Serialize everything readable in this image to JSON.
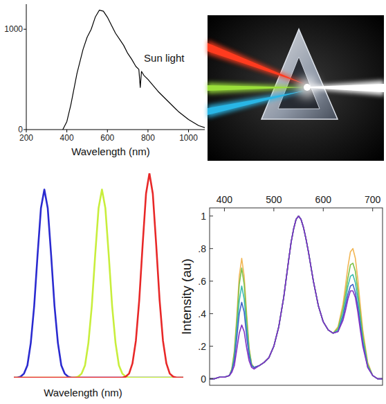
{
  "chart_data": [
    {
      "type": "line",
      "x": [
        380,
        400,
        420,
        450,
        480,
        500,
        520,
        540,
        560,
        580,
        600,
        620,
        640,
        660,
        680,
        700,
        720,
        740,
        755,
        762,
        768,
        780,
        800,
        850,
        900,
        950,
        1000,
        1050,
        1080
      ],
      "values": [
        0,
        80,
        250,
        560,
        800,
        920,
        1000,
        1120,
        1190,
        1180,
        1120,
        1040,
        960,
        900,
        840,
        760,
        700,
        630,
        600,
        420,
        580,
        540,
        500,
        380,
        280,
        180,
        100,
        40,
        20
      ],
      "color": "#000000",
      "xlim": [
        200,
        1080
      ],
      "ylim": [
        0,
        1250
      ],
      "xticks": [
        200,
        400,
        600,
        800,
        1000
      ],
      "yticks": [
        0,
        1000
      ],
      "x_label": "Wavelength (nm)",
      "annotations": [
        {
          "text": "Sun light",
          "x": 780,
          "y": 680
        }
      ],
      "grid": false
    },
    {
      "type": "line",
      "x": [
        0,
        2,
        4,
        6,
        8,
        10,
        12,
        14,
        16,
        18,
        20,
        22,
        24,
        26,
        28,
        30,
        32,
        34,
        36,
        38,
        40,
        42,
        44,
        46,
        48,
        50,
        52,
        54,
        56,
        58,
        60,
        62,
        64,
        66,
        68,
        70,
        72,
        74,
        76,
        78,
        80,
        82,
        84,
        86,
        88,
        90,
        92,
        94,
        96,
        98,
        100
      ],
      "series": [
        {
          "color": "#2a2ad0",
          "values": [
            0,
            0,
            0.005,
            0.02,
            0.06,
            0.17,
            0.35,
            0.6,
            0.83,
            0.92,
            0.83,
            0.6,
            0.35,
            0.17,
            0.06,
            0.02,
            0.005,
            0,
            0,
            0,
            0,
            0,
            0,
            0,
            0,
            0,
            0,
            0,
            0,
            0,
            0,
            0,
            0,
            0,
            0,
            0,
            0,
            0,
            0,
            0,
            0,
            0,
            0,
            0,
            0,
            0,
            0,
            0,
            0,
            0,
            0
          ]
        },
        {
          "color": "#c8ee3c",
          "values": [
            0,
            0,
            0,
            0,
            0,
            0,
            0,
            0,
            0,
            0,
            0,
            0,
            0,
            0,
            0,
            0,
            0,
            0,
            0,
            0.005,
            0.02,
            0.06,
            0.17,
            0.35,
            0.6,
            0.83,
            0.92,
            0.83,
            0.6,
            0.35,
            0.17,
            0.06,
            0.02,
            0.005,
            0,
            0,
            0,
            0,
            0,
            0,
            0,
            0,
            0,
            0,
            0,
            0,
            0,
            0,
            0,
            0,
            0
          ]
        },
        {
          "color": "#e82828",
          "values": [
            0,
            0,
            0,
            0,
            0,
            0,
            0,
            0,
            0,
            0,
            0,
            0,
            0,
            0,
            0,
            0,
            0,
            0,
            0,
            0,
            0,
            0,
            0,
            0,
            0,
            0,
            0,
            0,
            0,
            0,
            0,
            0,
            0,
            0.005,
            0.02,
            0.07,
            0.18,
            0.38,
            0.65,
            0.9,
            1,
            0.9,
            0.65,
            0.38,
            0.18,
            0.07,
            0.02,
            0.005,
            0,
            0,
            0
          ]
        }
      ],
      "xlim": [
        0,
        100
      ],
      "ylim": [
        0,
        1
      ],
      "x_label": "Wavelength (nm)",
      "tick_labels": false,
      "grid": false
    },
    {
      "type": "line",
      "x": [
        370,
        380,
        390,
        400,
        410,
        415,
        420,
        425,
        430,
        435,
        440,
        445,
        450,
        455,
        460,
        470,
        480,
        490,
        500,
        510,
        520,
        530,
        535,
        540,
        545,
        550,
        555,
        560,
        565,
        570,
        580,
        590,
        600,
        610,
        620,
        630,
        640,
        645,
        650,
        655,
        660,
        665,
        670,
        675,
        680,
        690,
        700,
        710,
        720
      ],
      "series": [
        {
          "color": "#f2b654",
          "values": [
            0,
            0,
            0.01,
            0.01,
            0.02,
            0.06,
            0.17,
            0.38,
            0.63,
            0.74,
            0.63,
            0.4,
            0.19,
            0.09,
            0.07,
            0.08,
            0.1,
            0.13,
            0.2,
            0.32,
            0.5,
            0.73,
            0.84,
            0.92,
            0.98,
            1,
            0.98,
            0.93,
            0.86,
            0.78,
            0.6,
            0.45,
            0.35,
            0.3,
            0.28,
            0.32,
            0.46,
            0.57,
            0.69,
            0.78,
            0.8,
            0.74,
            0.61,
            0.45,
            0.3,
            0.1,
            0.02,
            0,
            0
          ]
        },
        {
          "color": "#7cc24a",
          "values": [
            0,
            0,
            0.01,
            0.01,
            0.02,
            0.06,
            0.16,
            0.35,
            0.58,
            0.68,
            0.58,
            0.37,
            0.18,
            0.09,
            0.07,
            0.08,
            0.1,
            0.13,
            0.2,
            0.32,
            0.5,
            0.73,
            0.84,
            0.92,
            0.98,
            1,
            0.98,
            0.93,
            0.86,
            0.78,
            0.6,
            0.45,
            0.35,
            0.3,
            0.28,
            0.31,
            0.43,
            0.52,
            0.62,
            0.7,
            0.71,
            0.66,
            0.54,
            0.4,
            0.27,
            0.09,
            0.02,
            0,
            0
          ]
        },
        {
          "color": "#3cbab0",
          "values": [
            0,
            0,
            0.01,
            0.01,
            0.02,
            0.05,
            0.13,
            0.3,
            0.48,
            0.57,
            0.49,
            0.31,
            0.16,
            0.08,
            0.07,
            0.08,
            0.1,
            0.13,
            0.2,
            0.32,
            0.5,
            0.73,
            0.84,
            0.92,
            0.98,
            1,
            0.98,
            0.93,
            0.86,
            0.78,
            0.6,
            0.45,
            0.35,
            0.3,
            0.28,
            0.3,
            0.4,
            0.48,
            0.57,
            0.63,
            0.64,
            0.59,
            0.49,
            0.36,
            0.24,
            0.08,
            0.02,
            0,
            0
          ]
        },
        {
          "color": "#4262c8",
          "values": [
            0,
            0,
            0.01,
            0.01,
            0.02,
            0.05,
            0.11,
            0.25,
            0.4,
            0.47,
            0.41,
            0.26,
            0.14,
            0.08,
            0.07,
            0.08,
            0.1,
            0.13,
            0.2,
            0.32,
            0.5,
            0.73,
            0.84,
            0.92,
            0.98,
            1,
            0.98,
            0.93,
            0.86,
            0.78,
            0.6,
            0.45,
            0.35,
            0.3,
            0.28,
            0.29,
            0.38,
            0.45,
            0.52,
            0.57,
            0.58,
            0.53,
            0.44,
            0.33,
            0.22,
            0.07,
            0.02,
            0,
            0
          ]
        },
        {
          "color": "#8232c2",
          "values": [
            0,
            0,
            0.01,
            0.01,
            0.02,
            0.04,
            0.08,
            0.18,
            0.28,
            0.33,
            0.29,
            0.19,
            0.11,
            0.07,
            0.06,
            0.08,
            0.1,
            0.13,
            0.2,
            0.32,
            0.5,
            0.73,
            0.84,
            0.92,
            0.98,
            1,
            0.98,
            0.93,
            0.86,
            0.78,
            0.6,
            0.45,
            0.35,
            0.3,
            0.28,
            0.29,
            0.36,
            0.42,
            0.49,
            0.54,
            0.54,
            0.5,
            0.41,
            0.3,
            0.2,
            0.07,
            0.02,
            0,
            0
          ]
        }
      ],
      "xlim": [
        370,
        720
      ],
      "ylim": [
        -0.04,
        1.05
      ],
      "xticks": [
        400,
        500,
        600,
        700
      ],
      "yticks": [
        0,
        {
          "value": 0.2,
          "label": ".2"
        },
        {
          "value": 0.4,
          "label": ".4"
        },
        {
          "value": 0.6,
          "label": ".6"
        },
        {
          "value": 0.8,
          "label": ".8"
        },
        1
      ],
      "y_label": "Intensity (au)",
      "grid": false
    }
  ],
  "prism": {
    "light": "#ffffff",
    "beams": [
      "#ff3b1f",
      "#9be03a",
      "#29b6e6"
    ]
  }
}
